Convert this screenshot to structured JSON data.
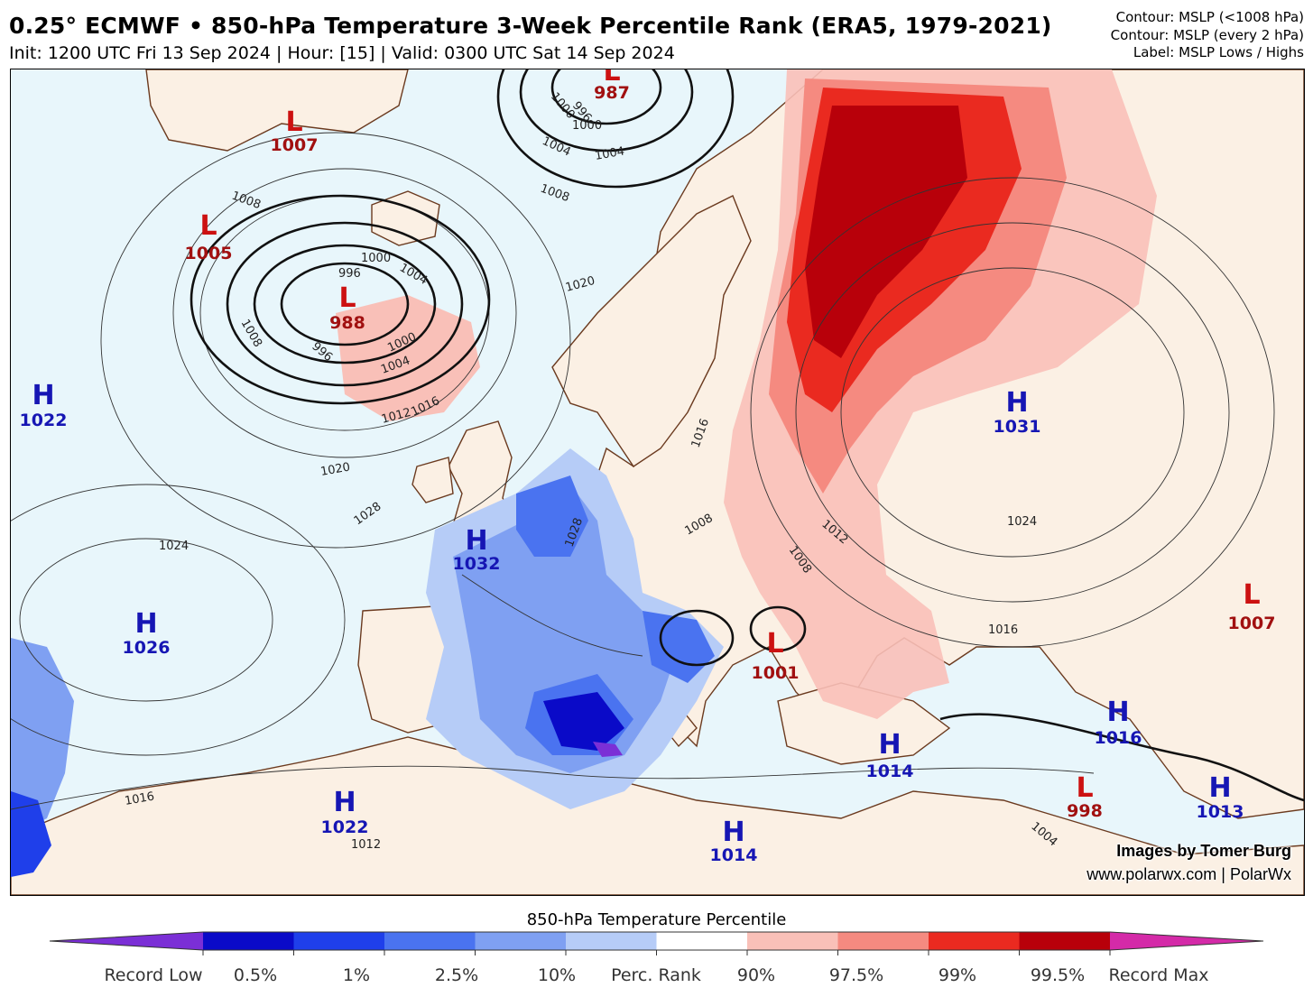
{
  "header": {
    "title": "0.25° ECMWF • 850-hPa Temperature 3-Week Percentile Rank (ERA5, 1979-2021)",
    "subtitle": "Init: 1200 UTC Fri 13 Sep 2024 | Hour: [15] | Valid: 0300 UTC Sat 14 Sep 2024",
    "notes": [
      "Contour: MSLP (<1008 hPa)",
      "Contour: MSLP (every 2 hPa)",
      "Label: MSLP Lows / Highs"
    ]
  },
  "map": {
    "pressure_centers": [
      {
        "type": "L",
        "value": "1007"
      },
      {
        "type": "L",
        "value": "987"
      },
      {
        "type": "L",
        "value": "1005"
      },
      {
        "type": "L",
        "value": "988"
      },
      {
        "type": "H",
        "value": "1022"
      },
      {
        "type": "H",
        "value": "1031"
      },
      {
        "type": "H",
        "value": "1032"
      },
      {
        "type": "H",
        "value": "1026"
      },
      {
        "type": "L",
        "value": "1001"
      },
      {
        "type": "L",
        "value": "1007"
      },
      {
        "type": "H",
        "value": "1016"
      },
      {
        "type": "H",
        "value": "1014"
      },
      {
        "type": "L",
        "value": "998"
      },
      {
        "type": "H",
        "value": "1013"
      },
      {
        "type": "H",
        "value": "1022"
      },
      {
        "type": "H",
        "value": "1014"
      }
    ],
    "isobar_labels": [
      "1008",
      "1004",
      "1000",
      "996",
      "1004",
      "1008",
      "1004",
      "996",
      "1000",
      "1004",
      "1020",
      "1008",
      "1012",
      "1016",
      "1020",
      "1028",
      "1024",
      "1028",
      "1016",
      "1008",
      "1008",
      "1012",
      "1024",
      "1016",
      "1016",
      "1012",
      "1004"
    ],
    "colors": {
      "ocean_background": "#e8f6fb",
      "land_background": "#fbf0e4",
      "coastline": "#6b3a1f",
      "low_label": "#cc1111",
      "high_label": "#1616b4"
    }
  },
  "credits": {
    "line1": "Images by Tomer Burg",
    "line2": "www.polarwx.com | PolarWx"
  },
  "colorbar": {
    "title": "850-hPa Temperature Percentile",
    "labels": [
      "Record Low",
      "0.5%",
      "1%",
      "2.5%",
      "10%",
      "Perc. Rank",
      "90%",
      "97.5%",
      "99%",
      "99.5%",
      "Record Max"
    ],
    "colors": [
      "#7b2fd6",
      "#0a0ac8",
      "#1f3fea",
      "#4a73f0",
      "#7fa0f2",
      "#b6ccf7",
      "#ffffff",
      "#f9c0b8",
      "#f58a80",
      "#ea2a20",
      "#b8000a",
      "#d42aa8"
    ]
  }
}
